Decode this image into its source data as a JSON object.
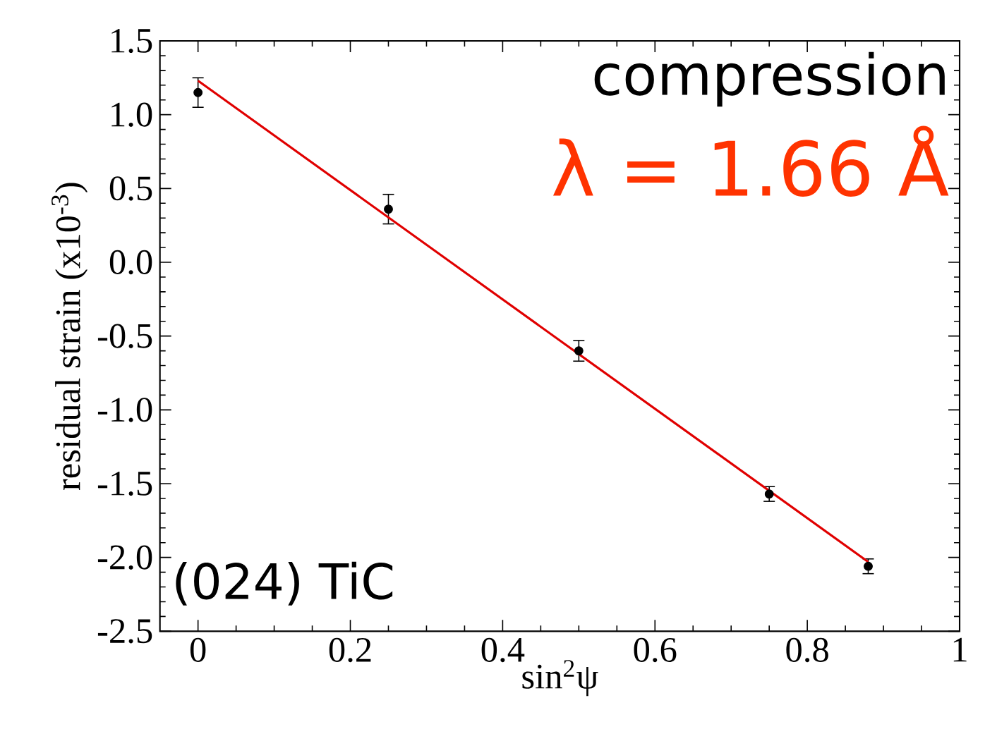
{
  "chart_data": {
    "type": "scatter",
    "xlabel": "sin$^{2}$ψ",
    "ylabel": "residual strain  (x10$^{-3}$)",
    "annotations": [
      "compression",
      "λ = 1.66 Å",
      "(024) TiC"
    ],
    "series": [
      {
        "color": "#000000",
        "x": [
          0,
          0.25,
          0.5,
          0.75,
          0.88
        ],
        "values": [
          1.15,
          0.36,
          -0.6,
          -1.57,
          -2.06
        ],
        "errors": [
          0.1,
          0.1,
          0.07,
          0.05,
          0.05
        ],
        "marker": "circle"
      },
      {
        "type": "line",
        "color": "#e00000",
        "x": [
          0,
          0.88
        ],
        "values": [
          1.23,
          -2.03
        ],
        "marker": "none",
        "line_style": "solid"
      }
    ],
    "xlim": [
      -0.05,
      1
    ],
    "ylim": [
      -2.5,
      1.5
    ],
    "xticks": [
      0,
      0.2,
      0.4,
      0.6,
      0.8,
      1
    ],
    "yticks": [
      1.5,
      {
        "value": 1.0,
        "label": "1.0"
      },
      0.5,
      {
        "value": 0.0,
        "label": "0.0"
      },
      -0.5,
      {
        "value": -1.0,
        "label": "-1.0"
      },
      -1.5,
      {
        "value": -2.0,
        "label": "-2.0"
      },
      -2.5
    ],
    "grid": false
  }
}
